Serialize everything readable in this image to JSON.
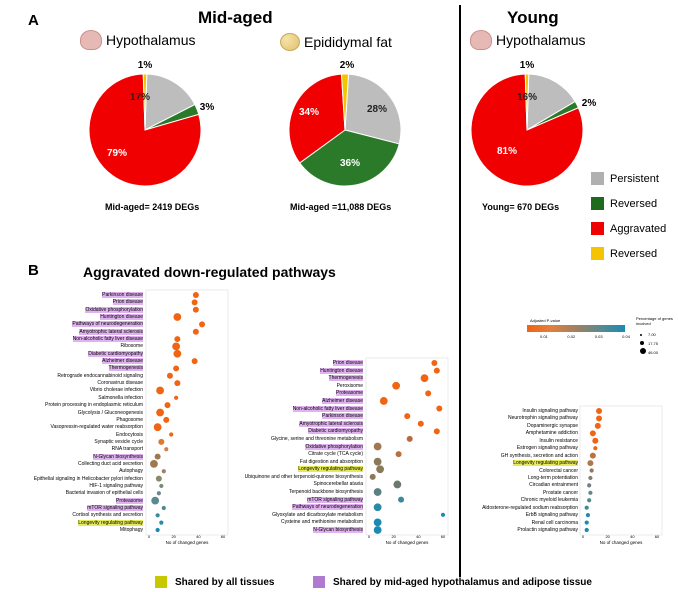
{
  "panel_a": {
    "letter": "A",
    "mid_title": "Mid-aged",
    "young_title": "Young",
    "pies": [
      {
        "tissue": "Hypothalamus",
        "icon": "brain-icon",
        "caption": "Mid-aged= 2419 DEGs",
        "slices": [
          {
            "label": "17%",
            "value": 17,
            "color": "#bdbdbd"
          },
          {
            "label": "3%",
            "value": 3,
            "color": "#2a7a2a"
          },
          {
            "label": "79%",
            "value": 79,
            "color": "#f00000"
          },
          {
            "label": "1%",
            "value": 1,
            "color": "#f5c400"
          }
        ]
      },
      {
        "tissue": "Epididymal fat",
        "icon": "fat-icon",
        "caption": "Mid-aged =11,088 DEGs",
        "slices": [
          {
            "label": "28%",
            "value": 28,
            "color": "#bdbdbd"
          },
          {
            "label": "36%",
            "value": 36,
            "color": "#2a7a2a"
          },
          {
            "label": "34%",
            "value": 34,
            "color": "#f00000"
          },
          {
            "label": "2%",
            "value": 2,
            "color": "#f5c400"
          }
        ]
      },
      {
        "tissue": "Hypothalamus",
        "icon": "brain-icon",
        "caption": "Young= 670 DEGs",
        "slices": [
          {
            "label": "16%",
            "value": 16,
            "color": "#bdbdbd"
          },
          {
            "label": "2%",
            "value": 2,
            "color": "#2a7a2a"
          },
          {
            "label": "81%",
            "value": 81,
            "color": "#f00000"
          },
          {
            "label": "1%",
            "value": 1,
            "color": "#f5c400"
          }
        ]
      }
    ],
    "legend": [
      {
        "label": "Persistent",
        "color": "#b0b0b0"
      },
      {
        "label": "Reversed",
        "color": "#1e6b1e"
      },
      {
        "label": "Aggravated",
        "color": "#f00000"
      },
      {
        "label": "Reversed",
        "color": "#f5c400"
      }
    ]
  },
  "panel_b": {
    "letter": "B",
    "title": "Aggravated down-regulated pathways",
    "colorbar": {
      "title": "Adjusted P-value",
      "ticks": [
        "0.01",
        "0.02",
        "0.03",
        "0.04"
      ]
    },
    "size_legend": {
      "title": "Percentage of genes involved",
      "values": [
        "7.00",
        "17.75",
        "46.00"
      ]
    },
    "x_label": "No of changed genes"
  },
  "chart_data": [
    {
      "type": "scatter",
      "title": "",
      "xlabel": "No of changed genes",
      "xlim": [
        0,
        60
      ],
      "xticks": [
        "0",
        "20",
        "40",
        "60"
      ],
      "points": [
        {
          "name": "Parkinson disease",
          "x": 38,
          "size": 2,
          "color": "#f06414",
          "highlight": "purple"
        },
        {
          "name": "Prion disease",
          "x": 37,
          "size": 2,
          "color": "#f06414",
          "highlight": "purple"
        },
        {
          "name": "Oxidative phosphorylation",
          "x": 38,
          "size": 2,
          "color": "#f06414",
          "highlight": "purple"
        },
        {
          "name": "Huntington disease",
          "x": 23,
          "size": 3,
          "color": "#f06414",
          "highlight": "purple"
        },
        {
          "name": "Pathways of neurodegeneration",
          "x": 43,
          "size": 2,
          "color": "#f06414",
          "highlight": "purple"
        },
        {
          "name": "Amyotrophic lateral sclerosis",
          "x": 38,
          "size": 2,
          "color": "#f06414",
          "highlight": "purple"
        },
        {
          "name": "Non-alcoholic fatty liver disease",
          "x": 23,
          "size": 2,
          "color": "#f06414",
          "highlight": "purple"
        },
        {
          "name": "Ribosome",
          "x": 22,
          "size": 3,
          "color": "#f06414",
          "highlight": ""
        },
        {
          "name": "Diabetic cardiomyopathy",
          "x": 23,
          "size": 3,
          "color": "#f06414",
          "highlight": "purple"
        },
        {
          "name": "Alzheimer disease",
          "x": 37,
          "size": 2,
          "color": "#f06414",
          "highlight": "purple"
        },
        {
          "name": "Thermogenesis",
          "x": 22,
          "size": 2,
          "color": "#f06414",
          "highlight": "purple"
        },
        {
          "name": "Retrograde endocannabinoid signaling",
          "x": 17,
          "size": 2,
          "color": "#f06414",
          "highlight": ""
        },
        {
          "name": "Coronavirus disease",
          "x": 23,
          "size": 2,
          "color": "#f06414",
          "highlight": ""
        },
        {
          "name": "Vibrio cholerae infection",
          "x": 9,
          "size": 3,
          "color": "#f06414",
          "highlight": ""
        },
        {
          "name": "Salmonella infection",
          "x": 22,
          "size": 1,
          "color": "#f06414",
          "highlight": ""
        },
        {
          "name": "Protein processing in endoplasmic reticulum",
          "x": 15,
          "size": 2,
          "color": "#f06414",
          "highlight": ""
        },
        {
          "name": "Glycolysis / Gluconeogenesis",
          "x": 9,
          "size": 3,
          "color": "#f06414",
          "highlight": ""
        },
        {
          "name": "Phagosome",
          "x": 14,
          "size": 2,
          "color": "#f06414",
          "highlight": ""
        },
        {
          "name": "Vasopressin-regulated water reabsorption",
          "x": 7,
          "size": 3,
          "color": "#f06414",
          "highlight": ""
        },
        {
          "name": "Endocytosis",
          "x": 18,
          "size": 1,
          "color": "#f06414",
          "highlight": ""
        },
        {
          "name": "Synaptic vesicle cycle",
          "x": 10,
          "size": 2,
          "color": "#e0782a",
          "highlight": ""
        },
        {
          "name": "RNA transport",
          "x": 14,
          "size": 1,
          "color": "#d0804a",
          "highlight": ""
        },
        {
          "name": "N-Glycan biosynthesis",
          "x": 7,
          "size": 2,
          "color": "#a07850",
          "highlight": "purple"
        },
        {
          "name": "Collecting duct acid secretion",
          "x": 4,
          "size": 3,
          "color": "#a07850",
          "highlight": ""
        },
        {
          "name": "Autophagy",
          "x": 12,
          "size": 1,
          "color": "#a08060",
          "highlight": ""
        },
        {
          "name": "Epithelial signaling in Helicobacter pylori infection",
          "x": 8,
          "size": 2,
          "color": "#8a8a6a",
          "highlight": ""
        },
        {
          "name": "HIF-1 signaling pathway",
          "x": 10,
          "size": 1,
          "color": "#7a8a7a",
          "highlight": ""
        },
        {
          "name": "Bacterial invasion of epithelial cells",
          "x": 8,
          "size": 1,
          "color": "#6a8a8a",
          "highlight": ""
        },
        {
          "name": "Proteasome",
          "x": 5,
          "size": 3,
          "color": "#5a8a90",
          "highlight": "purple"
        },
        {
          "name": "mTOR signaling pathway",
          "x": 12,
          "size": 1,
          "color": "#4a8a9a",
          "highlight": "purple"
        },
        {
          "name": "Cortisol synthesis and secretion",
          "x": 7,
          "size": 1,
          "color": "#3a8aa0",
          "highlight": ""
        },
        {
          "name": "Longevity regulating pathway",
          "x": 10,
          "size": 1,
          "color": "#2a8aa8",
          "highlight": "yellow"
        },
        {
          "name": "Mitophagy",
          "x": 7,
          "size": 1,
          "color": "#1a8ab0",
          "highlight": ""
        }
      ]
    },
    {
      "type": "scatter",
      "title": "",
      "xlabel": "No of changed genes",
      "xlim": [
        0,
        60
      ],
      "xticks": [
        "0",
        "20",
        "40",
        "60"
      ],
      "points": [
        {
          "name": "Prion disease",
          "x": 53,
          "size": 2,
          "color": "#f06414",
          "highlight": "purple"
        },
        {
          "name": "Huntington disease",
          "x": 55,
          "size": 2,
          "color": "#f06414",
          "highlight": "purple"
        },
        {
          "name": "Thermogenesis",
          "x": 45,
          "size": 3,
          "color": "#f06414",
          "highlight": "purple"
        },
        {
          "name": "Peroxisome",
          "x": 22,
          "size": 3,
          "color": "#f06414",
          "highlight": ""
        },
        {
          "name": "Proteasome",
          "x": 48,
          "size": 2,
          "color": "#f06414",
          "highlight": "purple"
        },
        {
          "name": "Alzheimer disease",
          "x": 12,
          "size": 3,
          "color": "#f06414",
          "highlight": "purple"
        },
        {
          "name": "Non-alcoholic fatty liver disease",
          "x": 57,
          "size": 2,
          "color": "#f06414",
          "highlight": "purple"
        },
        {
          "name": "Parkinson disease",
          "x": 31,
          "size": 2,
          "color": "#f06414",
          "highlight": "purple"
        },
        {
          "name": "Amyotrophic lateral sclerosis",
          "x": 42,
          "size": 2,
          "color": "#f06414",
          "highlight": "purple"
        },
        {
          "name": "Diabetic cardiomyopathy",
          "x": 55,
          "size": 2,
          "color": "#f06414",
          "highlight": "purple"
        },
        {
          "name": "Glycine, serine and threonine metabolism",
          "x": 33,
          "size": 2,
          "color": "#b86a3a",
          "highlight": ""
        },
        {
          "name": "Oxidative phosphorylation",
          "x": 7,
          "size": 3,
          "color": "#a07850",
          "highlight": "purple"
        },
        {
          "name": "Citrate cycle (TCA cycle)",
          "x": 24,
          "size": 2,
          "color": "#b87040",
          "highlight": ""
        },
        {
          "name": "Fat digestion and absorption",
          "x": 7,
          "size": 3,
          "color": "#8a7a5a",
          "highlight": ""
        },
        {
          "name": "Longevity regulating pathway",
          "x": 9,
          "size": 3,
          "color": "#8a7a5a",
          "highlight": "yellow"
        },
        {
          "name": "Ubiquinone and other terpenoid-quinone biosynthesis",
          "x": 3,
          "size": 2,
          "color": "#8a7a5a",
          "highlight": ""
        },
        {
          "name": "Spinocerebellar ataxia",
          "x": 23,
          "size": 3,
          "color": "#6a7a6a",
          "highlight": ""
        },
        {
          "name": "Terpenoid backbone biosynthesis",
          "x": 7,
          "size": 3,
          "color": "#5a8080",
          "highlight": ""
        },
        {
          "name": "mTOR signaling pathway",
          "x": 26,
          "size": 2,
          "color": "#3a8a98",
          "highlight": "purple"
        },
        {
          "name": "Pathways of neurodegeneration",
          "x": 7,
          "size": 3,
          "color": "#2a8aa8",
          "highlight": "purple"
        },
        {
          "name": "Glyoxylate and dicarboxylate metabolism",
          "x": 60,
          "size": 1,
          "color": "#1a8ab4",
          "highlight": ""
        },
        {
          "name": "Cysteine and methionine metabolism",
          "x": 7,
          "size": 3,
          "color": "#1a8ab4",
          "highlight": ""
        },
        {
          "name": "N-Glycan biosynthesis",
          "x": 7,
          "size": 3,
          "color": "#1a8ab4",
          "highlight": "purple"
        }
      ]
    },
    {
      "type": "scatter",
      "title": "",
      "xlabel": "No of changed genes",
      "xlim": [
        0,
        60
      ],
      "xticks": [
        "0",
        "20",
        "40",
        "60"
      ],
      "points": [
        {
          "name": "Insulin signaling pathway",
          "x": 13,
          "size": 2,
          "color": "#f06414",
          "highlight": ""
        },
        {
          "name": "Neurotrophin signaling pathway",
          "x": 13,
          "size": 2,
          "color": "#f06414",
          "highlight": ""
        },
        {
          "name": "Dopaminergic synapse",
          "x": 12,
          "size": 2,
          "color": "#f06414",
          "highlight": ""
        },
        {
          "name": "Amphetamine addiction",
          "x": 8,
          "size": 2,
          "color": "#f06414",
          "highlight": ""
        },
        {
          "name": "Insulin resistance",
          "x": 10,
          "size": 2,
          "color": "#f06414",
          "highlight": ""
        },
        {
          "name": "Estrogen signaling pathway",
          "x": 10,
          "size": 1,
          "color": "#f06414",
          "highlight": ""
        },
        {
          "name": "GH synthesis, secretion and action",
          "x": 8,
          "size": 2,
          "color": "#c07040",
          "highlight": ""
        },
        {
          "name": "Longevity regulating pathway",
          "x": 6,
          "size": 2,
          "color": "#b07848",
          "highlight": "yellow"
        },
        {
          "name": "Colorectal cancer",
          "x": 7,
          "size": 1,
          "color": "#907860",
          "highlight": ""
        },
        {
          "name": "Long-term potentiation",
          "x": 6,
          "size": 1,
          "color": "#808070",
          "highlight": ""
        },
        {
          "name": "Circadian entrainment",
          "x": 5,
          "size": 1,
          "color": "#708080",
          "highlight": ""
        },
        {
          "name": "Prostate cancer",
          "x": 6,
          "size": 1,
          "color": "#608888",
          "highlight": ""
        },
        {
          "name": "Chronic myeloid leukemia",
          "x": 5,
          "size": 1,
          "color": "#508a90",
          "highlight": ""
        },
        {
          "name": "Aldosterone-regulated sodium reabsorption",
          "x": 3,
          "size": 1,
          "color": "#3a8a9a",
          "highlight": ""
        },
        {
          "name": "ErbB signaling pathway",
          "x": 4,
          "size": 1,
          "color": "#2a8aa8",
          "highlight": ""
        },
        {
          "name": "Renal cell carcinoma",
          "x": 3,
          "size": 1,
          "color": "#1a8ab0",
          "highlight": ""
        },
        {
          "name": "Prolactin signaling pathway",
          "x": 3,
          "size": 1,
          "color": "#1a8ab4",
          "highlight": ""
        }
      ]
    }
  ],
  "footer": [
    {
      "label": "Shared by all tissues",
      "color": "#c8c800"
    },
    {
      "label": "Shared by mid-aged hypothalamus and adipose tissue",
      "color": "#b07ad0"
    }
  ]
}
